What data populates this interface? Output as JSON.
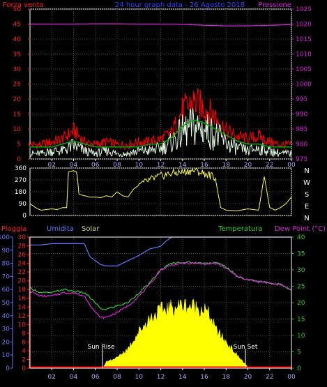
{
  "header": {
    "left_label": "Forza vento",
    "title": "24 hour graph data - 26 Agosto 2018",
    "right_label": "Pressione"
  },
  "direction_labels": [
    "N",
    "W",
    "S",
    "E",
    "N"
  ],
  "bottom_header": {
    "rain": "Pioggia",
    "humidity": "Umidita",
    "solar": "Solar",
    "temperature": "Temperatura",
    "dewpoint": "Dew Point (°C)"
  },
  "annotations": {
    "sunrise": "Sun Rise",
    "sunset": "Sun Set"
  },
  "colors": {
    "gust": "#ff0000",
    "wind": "#e6ffe6",
    "avg_wind": "#00aa00",
    "pressure": "#dd22dd",
    "direction": "#ffff44",
    "humidity": "#6677ff",
    "temperature": "#33cc33",
    "dewpoint": "#dd22dd",
    "solar": "#ffff00",
    "rain": "#ff0000",
    "frame": "#ffffff"
  },
  "chart_data": [
    {
      "type": "line",
      "panel": "wind",
      "ylim_left": [
        0,
        50
      ],
      "yticks_left": [
        0,
        5,
        10,
        15,
        20,
        25,
        30,
        35,
        40,
        45,
        50
      ],
      "ylim_right": [
        975,
        1025
      ],
      "yticks_right": [
        975,
        980,
        985,
        990,
        995,
        1000,
        1005,
        1010,
        1015,
        1020,
        1025
      ],
      "xlim": [
        0,
        24
      ],
      "xticks": [
        "02",
        "04",
        "06",
        "08",
        "10",
        "12",
        "14",
        "16",
        "18",
        "20",
        "22",
        "00"
      ],
      "series": [
        {
          "axis": "left",
          "x": [
            0,
            1,
            2,
            3,
            4,
            5,
            6,
            7,
            8,
            9,
            10,
            11,
            12,
            13,
            14,
            15,
            16,
            17,
            18,
            19,
            20,
            21,
            22,
            23,
            24
          ],
          "values": [
            5,
            5,
            6,
            7,
            10,
            6,
            5,
            6,
            5,
            5,
            6,
            6,
            7,
            9,
            17,
            20,
            18,
            15,
            10,
            8,
            7,
            8,
            6,
            5,
            5
          ]
        },
        {
          "axis": "left",
          "x": [
            0,
            1,
            2,
            3,
            4,
            5,
            6,
            7,
            8,
            9,
            10,
            11,
            12,
            13,
            14,
            15,
            16,
            17,
            18,
            19,
            20,
            21,
            22,
            23,
            24
          ],
          "values": [
            2,
            2,
            3,
            3,
            5,
            3,
            2,
            3,
            2,
            2,
            3,
            3,
            4,
            6,
            10,
            12,
            11,
            9,
            6,
            4,
            3,
            4,
            3,
            2,
            2
          ]
        },
        {
          "axis": "left",
          "x": [
            0,
            1,
            2,
            3,
            4,
            5,
            6,
            7,
            8,
            9,
            10,
            11,
            12,
            13,
            14,
            15,
            16,
            17,
            18,
            19,
            20,
            21,
            22,
            23,
            24
          ],
          "values": [
            4,
            4,
            4,
            5,
            6,
            5,
            4,
            4,
            4,
            4,
            4,
            5,
            5,
            7,
            11,
            13,
            12,
            10,
            8,
            6,
            5,
            5,
            4,
            4,
            4
          ]
        },
        {
          "axis": "right",
          "x": [
            0,
            2,
            4,
            6,
            8,
            10,
            12,
            14,
            16,
            18,
            20,
            22,
            24
          ],
          "values": [
            1020,
            1020,
            1020,
            1020.1,
            1020.1,
            1020,
            1020,
            1019.9,
            1019.6,
            1019.4,
            1019.4,
            1019.6,
            1019.8
          ]
        }
      ]
    },
    {
      "type": "line",
      "panel": "direction",
      "ylim": [
        0,
        360
      ],
      "yticks": [
        0,
        90,
        180,
        270,
        360
      ],
      "xlim": [
        0,
        24
      ],
      "series": [
        {
          "x": [
            0,
            0.5,
            1,
            1.5,
            2,
            2.5,
            3,
            3.4,
            3.5,
            4,
            4.3,
            4.5,
            5,
            5.5,
            6,
            6.5,
            7,
            7.5,
            8,
            8.5,
            9,
            9.5,
            10,
            11,
            12,
            13,
            14,
            15,
            16,
            17,
            17.5,
            18,
            19,
            20,
            21,
            21.5,
            22,
            22.5,
            23,
            23.5,
            24
          ],
          "values": [
            90,
            60,
            40,
            45,
            50,
            45,
            60,
            60,
            330,
            340,
            330,
            160,
            150,
            140,
            140,
            135,
            150,
            140,
            180,
            150,
            140,
            200,
            230,
            270,
            300,
            320,
            330,
            340,
            320,
            290,
            60,
            40,
            35,
            50,
            40,
            300,
            60,
            40,
            60,
            90,
            140
          ]
        }
      ]
    },
    {
      "type": "line",
      "panel": "temperature",
      "ylim_left": [
        0,
        100
      ],
      "yticks_left": [
        0,
        10,
        20,
        30,
        40,
        50,
        60,
        70,
        80,
        90,
        100
      ],
      "ylim_mid": [
        0,
        30
      ],
      "yticks_mid": [
        0,
        2,
        4,
        6,
        8,
        10,
        12,
        14,
        16,
        18,
        20,
        22,
        24,
        26,
        28,
        30
      ],
      "ylim_right": [
        0,
        40
      ],
      "yticks_right": [
        0,
        5,
        10,
        15,
        20,
        25,
        30,
        35,
        40
      ],
      "xlim": [
        0,
        24
      ],
      "xticks": [
        "02",
        "04",
        "06",
        "08",
        "10",
        "12",
        "14",
        "16",
        "18",
        "20",
        "22",
        "00"
      ],
      "series": [
        {
          "axis": "left",
          "x": [
            0,
            1,
            2,
            3,
            4,
            5,
            5.5,
            6,
            6.5,
            7,
            7.5,
            8,
            8.5,
            9,
            9.5,
            10,
            11,
            12,
            12.5,
            13,
            14,
            15,
            16,
            17,
            18,
            19,
            20,
            21,
            22,
            23,
            24
          ],
          "values": [
            94,
            94,
            95,
            95,
            95,
            95,
            85,
            82,
            79,
            78,
            78,
            78,
            80,
            82,
            84,
            86,
            91,
            93,
            97,
            100,
            100,
            100,
            100,
            100,
            100,
            100,
            100,
            100,
            100,
            100,
            100
          ]
        },
        {
          "axis": "right",
          "x": [
            0,
            1,
            2,
            3,
            4,
            5,
            6,
            6.5,
            7,
            8,
            9,
            10,
            11,
            12,
            13,
            14,
            15,
            16,
            17,
            18,
            19,
            20,
            21,
            22,
            23,
            24
          ],
          "values": [
            24.5,
            23,
            23,
            24,
            23.5,
            23,
            20,
            18,
            18,
            19,
            20,
            23,
            26,
            30,
            32,
            32.3,
            32.2,
            32,
            32.3,
            31,
            28,
            27,
            26.5,
            26,
            25.5,
            24
          ]
        },
        {
          "axis": "right",
          "x": [
            0,
            1,
            2,
            3,
            4,
            5,
            6,
            6.5,
            7,
            8,
            8.5,
            9,
            10,
            11,
            12,
            13,
            14,
            15,
            16,
            17,
            18,
            19,
            20,
            21,
            22,
            23,
            24
          ],
          "values": [
            23.5,
            22,
            22,
            23,
            23,
            22,
            17,
            15.5,
            15.5,
            17,
            18,
            19,
            22,
            25.5,
            30,
            31.5,
            32,
            32,
            31.8,
            32,
            30.5,
            28,
            27,
            26.3,
            26,
            25.5,
            24
          ]
        },
        {
          "axis": "left",
          "x": [
            0,
            6.7,
            7,
            8,
            9,
            10,
            11,
            12,
            13,
            14,
            15,
            16,
            16.5,
            17,
            18,
            19,
            20.1,
            24
          ],
          "values": [
            0,
            0,
            5,
            8,
            15,
            28,
            38,
            44,
            46,
            48,
            47,
            45,
            40,
            30,
            20,
            10,
            0,
            0
          ]
        },
        {
          "axis": "left",
          "x": [
            0,
            24
          ],
          "values": [
            0.5,
            0.5
          ]
        }
      ]
    }
  ]
}
